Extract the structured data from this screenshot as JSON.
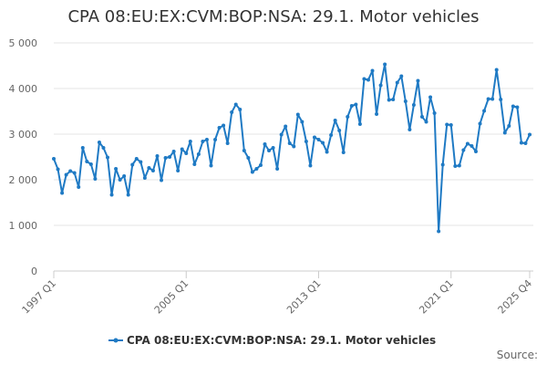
{
  "chart_data": {
    "type": "line",
    "title": "CPA 08:EU:EX:CVM:BOP:NSA: 29.1. Motor vehicles",
    "xlabel": "",
    "ylabel": "",
    "ylim": [
      0,
      5000
    ],
    "yticks": [
      0,
      1000,
      2000,
      3000,
      4000,
      5000
    ],
    "ytick_labels": [
      "0",
      "1 000",
      "2 000",
      "3 000",
      "4 000",
      "5 000"
    ],
    "x_tick_labels": [
      "1997 Q1",
      "2005 Q1",
      "2013 Q1",
      "2021 Q1",
      "2025 Q4"
    ],
    "x_tick_index": [
      0,
      32,
      64,
      96,
      115
    ],
    "grid": true,
    "legend_position": "bottom-center",
    "color": "#1f7ac4",
    "series": [
      {
        "name": "CPA 08:EU:EX:CVM:BOP:NSA: 29.1. Motor vehicles",
        "x": [
          "1997 Q1",
          "1997 Q2",
          "1997 Q3",
          "1997 Q4",
          "1998 Q1",
          "1998 Q2",
          "1998 Q3",
          "1998 Q4",
          "1999 Q1",
          "1999 Q2",
          "1999 Q3",
          "1999 Q4",
          "2000 Q1",
          "2000 Q2",
          "2000 Q3",
          "2000 Q4",
          "2001 Q1",
          "2001 Q2",
          "2001 Q3",
          "2001 Q4",
          "2002 Q1",
          "2002 Q2",
          "2002 Q3",
          "2002 Q4",
          "2003 Q1",
          "2003 Q2",
          "2003 Q3",
          "2003 Q4",
          "2004 Q1",
          "2004 Q2",
          "2004 Q3",
          "2004 Q4",
          "2005 Q1",
          "2005 Q2",
          "2005 Q3",
          "2005 Q4",
          "2006 Q1",
          "2006 Q2",
          "2006 Q3",
          "2006 Q4",
          "2007 Q1",
          "2007 Q2",
          "2007 Q3",
          "2007 Q4",
          "2008 Q1",
          "2008 Q2",
          "2008 Q3",
          "2008 Q4",
          "2009 Q1",
          "2009 Q2",
          "2009 Q3",
          "2009 Q4",
          "2010 Q1",
          "2010 Q2",
          "2010 Q3",
          "2010 Q4",
          "2011 Q1",
          "2011 Q2",
          "2011 Q3",
          "2011 Q4",
          "2012 Q1",
          "2012 Q2",
          "2012 Q3",
          "2012 Q4",
          "2013 Q1",
          "2013 Q2",
          "2013 Q3",
          "2013 Q4",
          "2014 Q1",
          "2014 Q2",
          "2014 Q3",
          "2014 Q4",
          "2015 Q1",
          "2015 Q2",
          "2015 Q3",
          "2015 Q4",
          "2016 Q1",
          "2016 Q2",
          "2016 Q3",
          "2016 Q4",
          "2017 Q1",
          "2017 Q2",
          "2017 Q3",
          "2017 Q4",
          "2018 Q1",
          "2018 Q2",
          "2018 Q3",
          "2018 Q4",
          "2019 Q1",
          "2019 Q2",
          "2019 Q3",
          "2019 Q4",
          "2020 Q1",
          "2020 Q2",
          "2020 Q3",
          "2020 Q4",
          "2021 Q1",
          "2021 Q2",
          "2021 Q3",
          "2021 Q4",
          "2022 Q1",
          "2022 Q2",
          "2022 Q3",
          "2022 Q4",
          "2023 Q1",
          "2023 Q2",
          "2023 Q3",
          "2023 Q4",
          "2024 Q1",
          "2024 Q2",
          "2024 Q3",
          "2024 Q4",
          "2025 Q1",
          "2025 Q2",
          "2025 Q3",
          "2025 Q4"
        ],
        "values": [
          2460,
          2230,
          1710,
          2110,
          2190,
          2150,
          1840,
          2700,
          2400,
          2340,
          2020,
          2820,
          2700,
          2490,
          1670,
          2240,
          2000,
          2080,
          1670,
          2330,
          2460,
          2390,
          2040,
          2260,
          2200,
          2520,
          1990,
          2480,
          2500,
          2620,
          2200,
          2670,
          2580,
          2840,
          2340,
          2560,
          2840,
          2880,
          2310,
          2880,
          3140,
          3190,
          2800,
          3480,
          3650,
          3540,
          2640,
          2480,
          2170,
          2240,
          2320,
          2780,
          2640,
          2700,
          2240,
          2990,
          3170,
          2800,
          2730,
          3430,
          3270,
          2840,
          2310,
          2930,
          2880,
          2810,
          2610,
          2980,
          3300,
          3080,
          2600,
          3380,
          3620,
          3650,
          3220,
          4210,
          4190,
          4390,
          3440,
          4070,
          4530,
          3750,
          3760,
          4130,
          4270,
          3720,
          3100,
          3640,
          4170,
          3380,
          3270,
          3810,
          3460,
          870,
          2330,
          3210,
          3200,
          2300,
          2310,
          2650,
          2790,
          2740,
          2620,
          3230,
          3510,
          3770,
          3770,
          4410,
          3760,
          3030,
          3180,
          3610,
          3590,
          2810,
          2800,
          2990
        ]
      }
    ]
  },
  "legend": {
    "label": "CPA 08:EU:EX:CVM:BOP:NSA: 29.1. Motor vehicles"
  },
  "credits": "Source:"
}
